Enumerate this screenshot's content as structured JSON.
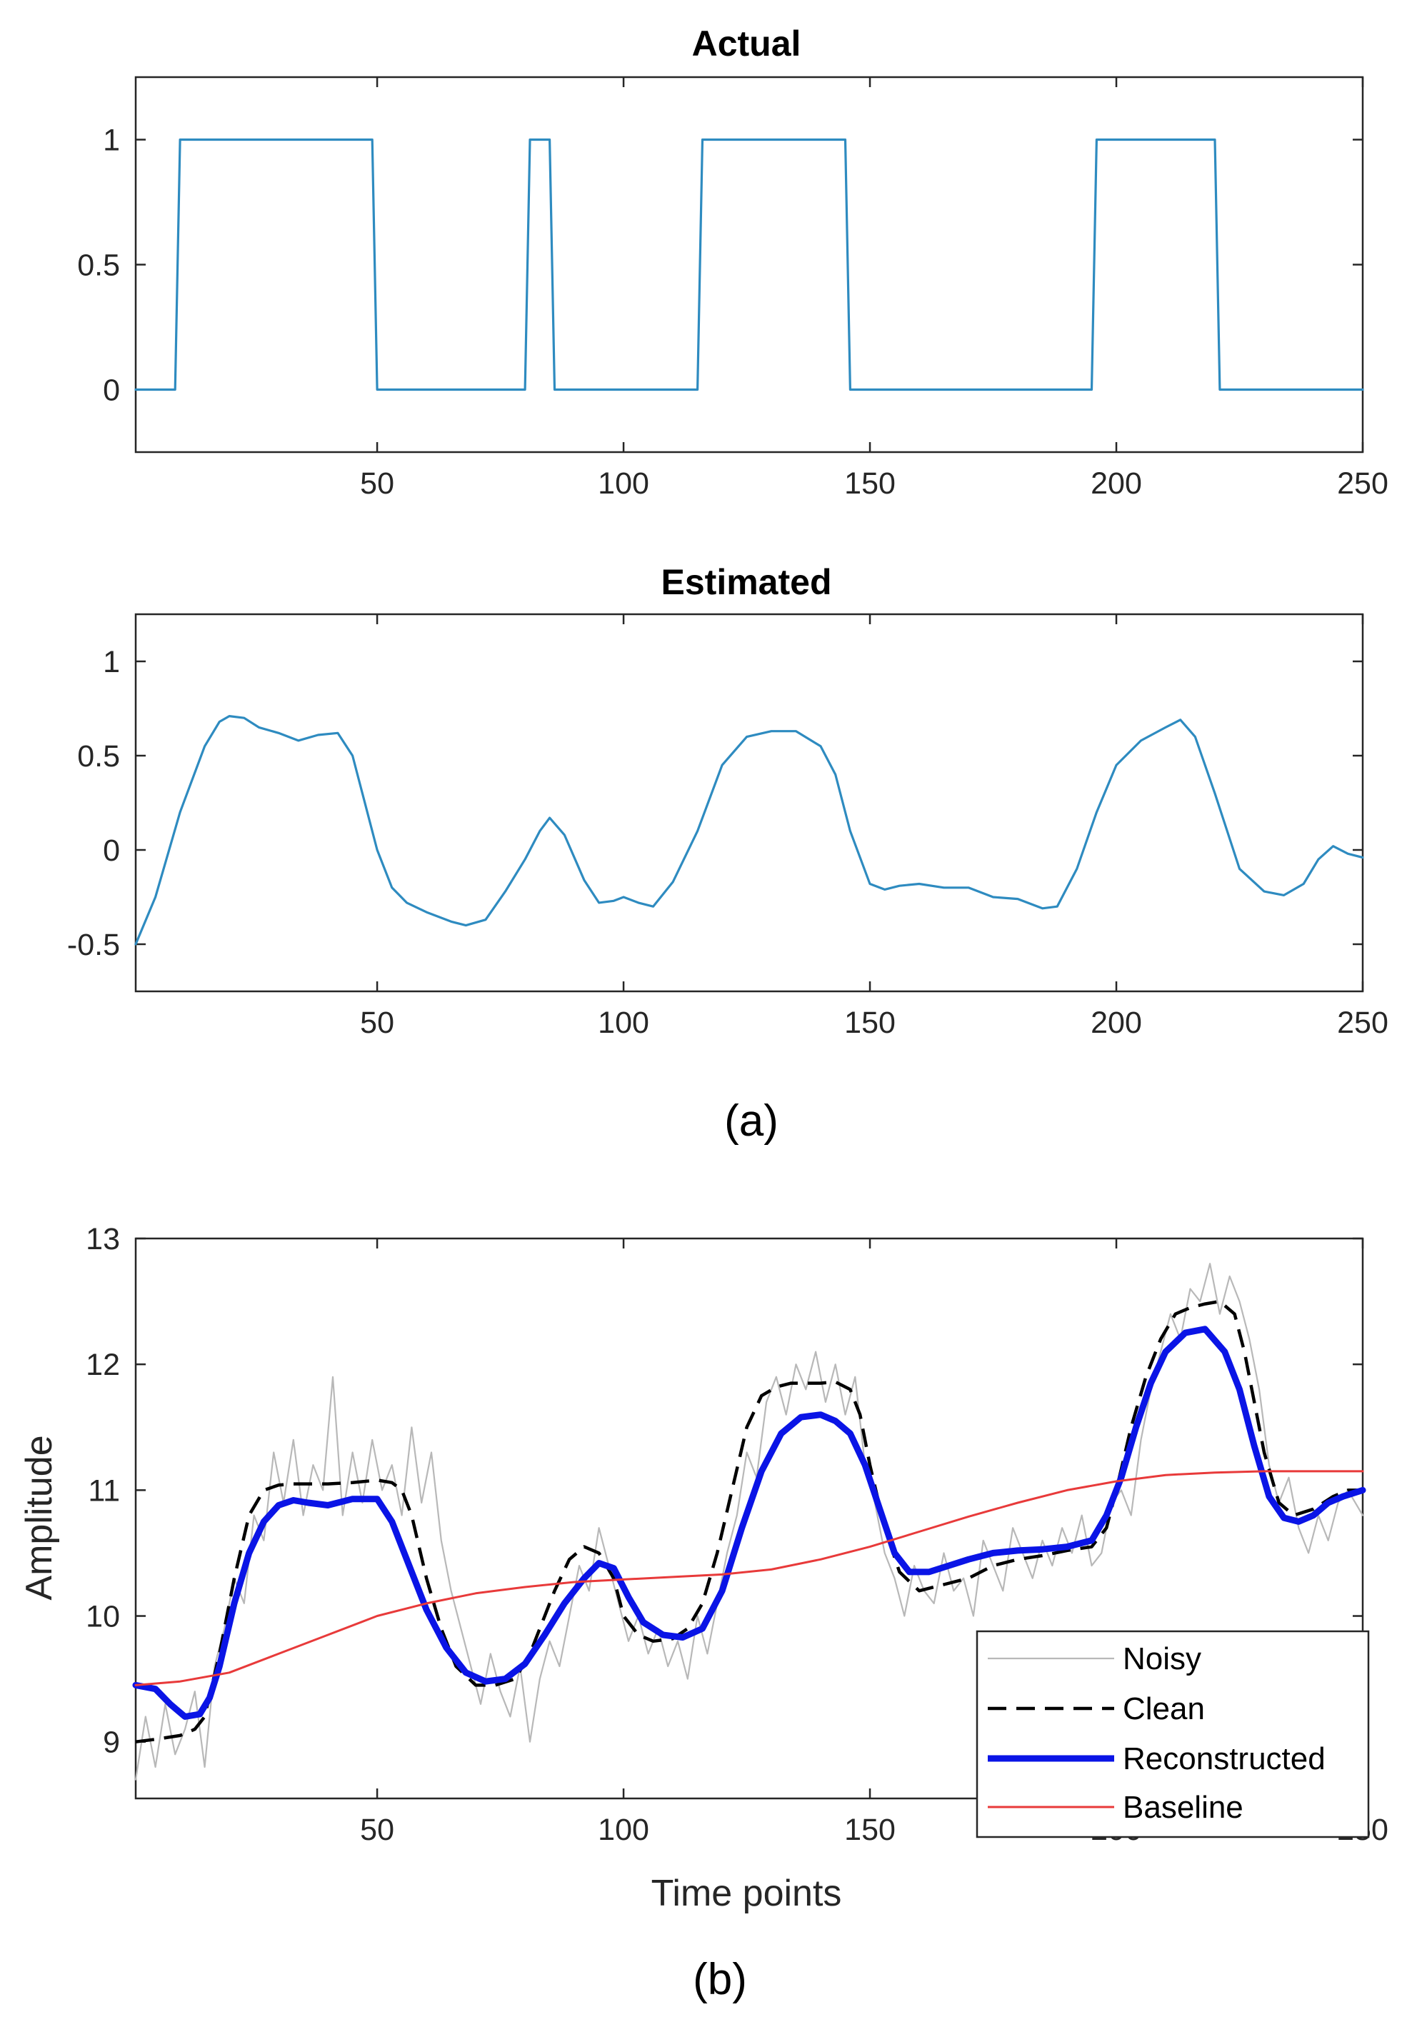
{
  "colors": {
    "estimate": "#2e8bc0",
    "noisy": "#b8b8b8",
    "clean": "#000000",
    "reconstructed": "#0a14e6",
    "baseline": "#e83a3a"
  },
  "captions": {
    "a": "(a)",
    "b": "(b)"
  },
  "chart_data": [
    {
      "id": "actual",
      "type": "line",
      "title": "Actual",
      "xlabel": "",
      "ylabel": "",
      "xlim": [
        1,
        250
      ],
      "ylim": [
        -0.25,
        1.25
      ],
      "xticks": [
        50,
        100,
        150,
        200,
        250
      ],
      "yticks": [
        0,
        0.5,
        1
      ],
      "ytick_labels": [
        "0",
        "0.5",
        "1"
      ],
      "grid": false,
      "series": [
        {
          "name": "Actual",
          "color": "#2e8bc0",
          "x": [
            1,
            9,
            10,
            49,
            50,
            80,
            81,
            82,
            85,
            86,
            115,
            116,
            145,
            146,
            195,
            196,
            220,
            221,
            250
          ],
          "y": [
            0,
            0,
            1,
            1,
            0,
            0,
            1,
            1,
            1,
            0,
            0,
            1,
            1,
            0,
            0,
            1,
            1,
            0,
            0
          ]
        }
      ]
    },
    {
      "id": "estimated",
      "type": "line",
      "title": "Estimated",
      "xlabel": "",
      "ylabel": "",
      "xlim": [
        1,
        250
      ],
      "ylim": [
        -0.75,
        1.25
      ],
      "xticks": [
        50,
        100,
        150,
        200,
        250
      ],
      "yticks": [
        -0.5,
        0,
        0.5,
        1
      ],
      "ytick_labels": [
        "-0.5",
        "0",
        "0.5",
        "1"
      ],
      "grid": false,
      "series": [
        {
          "name": "Estimated",
          "color": "#2e8bc0",
          "x": [
            1,
            5,
            10,
            15,
            18,
            20,
            23,
            26,
            30,
            34,
            38,
            42,
            45,
            48,
            50,
            53,
            56,
            60,
            65,
            68,
            72,
            76,
            80,
            83,
            85,
            88,
            92,
            95,
            98,
            100,
            103,
            106,
            110,
            115,
            120,
            125,
            130,
            135,
            140,
            143,
            146,
            150,
            153,
            156,
            160,
            165,
            170,
            175,
            180,
            185,
            188,
            192,
            196,
            200,
            205,
            210,
            213,
            216,
            220,
            225,
            230,
            234,
            238,
            241,
            244,
            247,
            250
          ],
          "y": [
            -0.5,
            -0.25,
            0.2,
            0.55,
            0.68,
            0.71,
            0.7,
            0.65,
            0.62,
            0.58,
            0.61,
            0.62,
            0.5,
            0.2,
            0.0,
            -0.2,
            -0.28,
            -0.33,
            -0.38,
            -0.4,
            -0.37,
            -0.22,
            -0.05,
            0.1,
            0.17,
            0.08,
            -0.16,
            -0.28,
            -0.27,
            -0.25,
            -0.28,
            -0.3,
            -0.17,
            0.1,
            0.45,
            0.6,
            0.63,
            0.63,
            0.55,
            0.4,
            0.1,
            -0.18,
            -0.21,
            -0.19,
            -0.18,
            -0.2,
            -0.2,
            -0.25,
            -0.26,
            -0.31,
            -0.3,
            -0.1,
            0.2,
            0.45,
            0.58,
            0.65,
            0.69,
            0.6,
            0.3,
            -0.1,
            -0.22,
            -0.24,
            -0.18,
            -0.05,
            0.02,
            -0.02,
            -0.04
          ]
        }
      ]
    },
    {
      "id": "reconstruction",
      "type": "line",
      "title": "",
      "xlabel": "Time points",
      "ylabel": "Amplitude",
      "xlim": [
        1,
        250
      ],
      "ylim": [
        8.55,
        13
      ],
      "xticks": [
        50,
        100,
        150,
        200,
        250
      ],
      "yticks": [
        9,
        10,
        11,
        12,
        13
      ],
      "ytick_labels": [
        "9",
        "10",
        "11",
        "12",
        "13"
      ],
      "grid": false,
      "legend_location": "bottom-right",
      "series": [
        {
          "name": "Noisy",
          "color": "#b8b8b8",
          "style": "solid",
          "x": [
            1,
            3,
            5,
            7,
            9,
            11,
            13,
            15,
            17,
            19,
            21,
            23,
            25,
            27,
            29,
            31,
            33,
            35,
            37,
            39,
            41,
            43,
            45,
            47,
            49,
            51,
            53,
            55,
            57,
            59,
            61,
            63,
            65,
            67,
            69,
            71,
            73,
            75,
            77,
            79,
            81,
            83,
            85,
            87,
            89,
            91,
            93,
            95,
            97,
            99,
            101,
            103,
            105,
            107,
            109,
            111,
            113,
            115,
            117,
            119,
            121,
            123,
            125,
            127,
            129,
            131,
            133,
            135,
            137,
            139,
            141,
            143,
            145,
            147,
            149,
            151,
            153,
            155,
            157,
            159,
            161,
            163,
            165,
            167,
            169,
            171,
            173,
            175,
            177,
            179,
            181,
            183,
            185,
            187,
            189,
            191,
            193,
            195,
            197,
            199,
            201,
            203,
            205,
            207,
            209,
            211,
            213,
            215,
            217,
            219,
            221,
            223,
            225,
            227,
            229,
            231,
            233,
            235,
            237,
            239,
            241,
            243,
            245,
            247,
            250
          ],
          "y": [
            8.7,
            9.2,
            8.8,
            9.3,
            8.9,
            9.1,
            9.4,
            8.8,
            9.6,
            9.9,
            10.3,
            10.1,
            10.8,
            10.6,
            11.3,
            10.9,
            11.4,
            10.8,
            11.2,
            11.0,
            11.9,
            10.8,
            11.3,
            10.9,
            11.4,
            11.0,
            11.2,
            10.8,
            11.5,
            10.9,
            11.3,
            10.6,
            10.2,
            9.9,
            9.6,
            9.3,
            9.7,
            9.4,
            9.2,
            9.6,
            9.0,
            9.5,
            9.8,
            9.6,
            10.0,
            10.4,
            10.2,
            10.7,
            10.4,
            10.1,
            9.8,
            10.0,
            9.7,
            9.9,
            9.6,
            9.8,
            9.5,
            10.0,
            9.7,
            10.1,
            10.5,
            10.8,
            11.3,
            11.1,
            11.7,
            11.9,
            11.6,
            12.0,
            11.8,
            12.1,
            11.7,
            12.0,
            11.6,
            11.9,
            11.2,
            10.9,
            10.5,
            10.3,
            10.0,
            10.4,
            10.2,
            10.1,
            10.5,
            10.2,
            10.3,
            10.0,
            10.6,
            10.4,
            10.2,
            10.7,
            10.5,
            10.3,
            10.6,
            10.4,
            10.7,
            10.5,
            10.8,
            10.4,
            10.5,
            10.9,
            11.0,
            10.8,
            11.4,
            11.8,
            12.1,
            12.4,
            12.2,
            12.6,
            12.5,
            12.8,
            12.4,
            12.7,
            12.5,
            12.2,
            11.8,
            11.2,
            10.9,
            11.1,
            10.7,
            10.5,
            10.8,
            10.6,
            10.9,
            11.0,
            10.8
          ]
        },
        {
          "name": "Clean",
          "color": "#000000",
          "style": "dashed",
          "x": [
            1,
            5,
            10,
            13,
            15,
            18,
            21,
            24,
            27,
            30,
            33,
            36,
            40,
            45,
            50,
            53,
            55,
            57,
            60,
            63,
            66,
            70,
            74,
            78,
            81,
            83,
            86,
            89,
            92,
            95,
            98,
            100,
            103,
            106,
            110,
            113,
            116,
            119,
            122,
            125,
            128,
            131,
            134,
            137,
            140,
            143,
            146,
            148,
            150,
            153,
            156,
            160,
            165,
            170,
            175,
            180,
            185,
            190,
            195,
            198,
            200,
            203,
            206,
            209,
            212,
            215,
            218,
            221,
            224,
            226,
            228,
            230,
            233,
            236,
            240,
            244,
            247,
            250
          ],
          "y": [
            9.0,
            9.02,
            9.05,
            9.1,
            9.2,
            9.7,
            10.3,
            10.8,
            11.0,
            11.04,
            11.05,
            11.05,
            11.05,
            11.06,
            11.08,
            11.06,
            11.0,
            10.8,
            10.3,
            9.9,
            9.6,
            9.45,
            9.45,
            9.5,
            9.7,
            9.9,
            10.2,
            10.45,
            10.55,
            10.5,
            10.3,
            10.0,
            9.85,
            9.8,
            9.82,
            9.9,
            10.1,
            10.5,
            11.0,
            11.5,
            11.75,
            11.82,
            11.85,
            11.85,
            11.85,
            11.86,
            11.8,
            11.6,
            11.2,
            10.7,
            10.35,
            10.2,
            10.25,
            10.3,
            10.4,
            10.45,
            10.48,
            10.52,
            10.55,
            10.7,
            11.0,
            11.5,
            11.9,
            12.2,
            12.4,
            12.45,
            12.48,
            12.5,
            12.4,
            12.1,
            11.7,
            11.3,
            10.9,
            10.8,
            10.85,
            10.95,
            11.0,
            11.0
          ]
        },
        {
          "name": "Reconstructed",
          "color": "#0a14e6",
          "style": "solid",
          "x": [
            1,
            5,
            8,
            11,
            14,
            16,
            18,
            21,
            24,
            27,
            30,
            33,
            36,
            40,
            45,
            50,
            53,
            56,
            60,
            64,
            68,
            72,
            76,
            80,
            84,
            88,
            92,
            95,
            98,
            101,
            104,
            108,
            112,
            116,
            120,
            124,
            128,
            132,
            136,
            140,
            143,
            146,
            149,
            152,
            155,
            158,
            162,
            166,
            170,
            175,
            180,
            185,
            190,
            195,
            198,
            201,
            204,
            207,
            210,
            214,
            218,
            222,
            225,
            228,
            231,
            234,
            237,
            240,
            243,
            246,
            250
          ],
          "y": [
            9.45,
            9.42,
            9.3,
            9.2,
            9.22,
            9.35,
            9.6,
            10.1,
            10.5,
            10.75,
            10.88,
            10.92,
            10.9,
            10.88,
            10.93,
            10.93,
            10.75,
            10.45,
            10.05,
            9.75,
            9.55,
            9.48,
            9.5,
            9.62,
            9.85,
            10.1,
            10.3,
            10.42,
            10.38,
            10.15,
            9.95,
            9.85,
            9.83,
            9.9,
            10.2,
            10.7,
            11.15,
            11.45,
            11.58,
            11.6,
            11.55,
            11.45,
            11.2,
            10.85,
            10.5,
            10.35,
            10.35,
            10.4,
            10.45,
            10.5,
            10.52,
            10.53,
            10.55,
            10.6,
            10.8,
            11.1,
            11.5,
            11.85,
            12.1,
            12.25,
            12.28,
            12.1,
            11.8,
            11.35,
            10.95,
            10.78,
            10.75,
            10.8,
            10.9,
            10.95,
            11.0
          ]
        },
        {
          "name": "Baseline",
          "color": "#e83a3a",
          "style": "solid",
          "x": [
            1,
            10,
            20,
            30,
            40,
            50,
            60,
            70,
            80,
            90,
            100,
            110,
            120,
            130,
            140,
            150,
            160,
            170,
            180,
            190,
            200,
            210,
            220,
            230,
            240,
            250
          ],
          "y": [
            9.45,
            9.48,
            9.55,
            9.7,
            9.85,
            10.0,
            10.1,
            10.18,
            10.23,
            10.27,
            10.29,
            10.31,
            10.33,
            10.37,
            10.45,
            10.55,
            10.67,
            10.79,
            10.9,
            11.0,
            11.07,
            11.12,
            11.14,
            11.15,
            11.15,
            11.15
          ]
        }
      ]
    }
  ]
}
